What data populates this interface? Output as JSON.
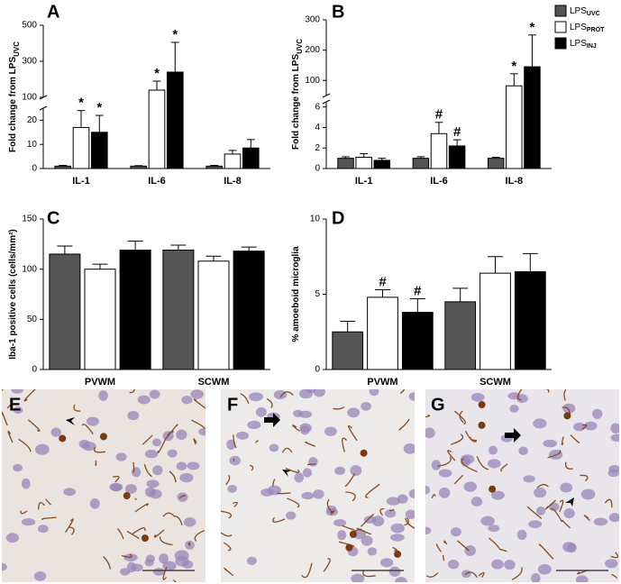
{
  "legend": {
    "series": [
      {
        "name": "LPS",
        "sub": "UVC"
      },
      {
        "name": "LPS",
        "sub": "PROT"
      },
      {
        "name": "LPS",
        "sub": "INJ"
      }
    ]
  },
  "chart_data": [
    {
      "type": "bar",
      "panel": "A",
      "ylabel": "Fold change from LPS",
      "ylabel_sub": "UVC",
      "categories": [
        "IL-1",
        "IL-6",
        "IL-8"
      ],
      "ylim": [
        0,
        500
      ],
      "y_break": [
        25,
        100
      ],
      "yticks": [
        0,
        10,
        20,
        100,
        300,
        500
      ],
      "series": [
        {
          "color": "#555555",
          "values": [
            1,
            1,
            1
          ],
          "errors": [
            0.3,
            0.2,
            0.3
          ]
        },
        {
          "color": "#ffffff",
          "values": [
            17,
            140,
            6
          ],
          "errors": [
            7,
            50,
            1.5
          ],
          "markers": [
            "*",
            "*",
            null
          ]
        },
        {
          "color": "#000000",
          "values": [
            15,
            240,
            8.5
          ],
          "errors": [
            7,
            165,
            3.5
          ],
          "markers": [
            "*",
            "*",
            null
          ]
        }
      ]
    },
    {
      "type": "bar",
      "panel": "B",
      "ylabel": "Fold change from LPS",
      "ylabel_sub": "UVC",
      "categories": [
        "IL-1",
        "IL-6",
        "IL-8"
      ],
      "ylim": [
        0,
        300
      ],
      "y_break": [
        6.5,
        50
      ],
      "yticks": [
        0,
        2,
        4,
        6,
        100,
        200,
        300
      ],
      "series": [
        {
          "color": "#555555",
          "values": [
            1,
            1,
            1
          ],
          "errors": [
            0.15,
            0.15,
            0.1
          ]
        },
        {
          "color": "#ffffff",
          "values": [
            1.1,
            3.4,
            82
          ],
          "errors": [
            0.35,
            1.1,
            40
          ],
          "markers": [
            null,
            "#",
            "*"
          ]
        },
        {
          "color": "#000000",
          "values": [
            0.8,
            2.2,
            145
          ],
          "errors": [
            0.2,
            0.6,
            105
          ],
          "markers": [
            null,
            "#",
            "*"
          ]
        }
      ]
    },
    {
      "type": "bar",
      "panel": "C",
      "ylabel": "Iba-1 positive cells (cells/mm²)",
      "categories": [
        "PVWM",
        "SCWM"
      ],
      "ylim": [
        0,
        150
      ],
      "yticks": [
        0,
        50,
        100,
        150
      ],
      "series": [
        {
          "color": "#555555",
          "values": [
            115,
            119
          ],
          "errors": [
            8,
            5
          ]
        },
        {
          "color": "#ffffff",
          "values": [
            100,
            108
          ],
          "errors": [
            5,
            5
          ]
        },
        {
          "color": "#000000",
          "values": [
            119,
            118
          ],
          "errors": [
            9,
            4
          ]
        }
      ]
    },
    {
      "type": "bar",
      "panel": "D",
      "ylabel": "% amoeboid microglia",
      "categories": [
        "PVWM",
        "SCWM"
      ],
      "ylim": [
        0,
        10
      ],
      "yticks": [
        0,
        5,
        10
      ],
      "series": [
        {
          "color": "#555555",
          "values": [
            2.5,
            4.5
          ],
          "errors": [
            0.7,
            0.9
          ]
        },
        {
          "color": "#ffffff",
          "values": [
            4.8,
            6.4
          ],
          "errors": [
            0.5,
            1.1
          ],
          "markers": [
            "#",
            null
          ]
        },
        {
          "color": "#000000",
          "values": [
            3.8,
            6.5
          ],
          "errors": [
            0.9,
            1.2
          ],
          "markers": [
            "#",
            null
          ]
        }
      ]
    }
  ],
  "micrographs": [
    {
      "panel": "E"
    },
    {
      "panel": "F"
    },
    {
      "panel": "G"
    }
  ]
}
